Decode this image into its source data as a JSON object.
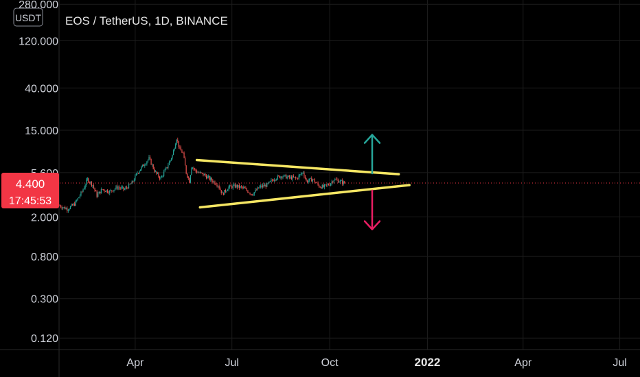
{
  "symbol": {
    "title": "EOS / TetherUS, 1D, BINANCE",
    "currency": "USDT"
  },
  "last_price": {
    "value": "4.400",
    "countdown": "17:45:53"
  },
  "colors": {
    "background": "#000000",
    "grid": "#1c1c1c",
    "up_candle": "#26a69a",
    "down_candle": "#ef5350",
    "trendline": "#f5e663",
    "arrow_up": "#26a69a",
    "arrow_down": "#e91e63",
    "price_badge": "#f23645",
    "axis_text": "#d1d4dc"
  },
  "chart_data": {
    "type": "candlestick",
    "title": "EOS / TetherUS, 1D, BINANCE",
    "y_scale": "log",
    "ylim": [
      0.11,
      290
    ],
    "grid": true,
    "y_ticks": [
      {
        "value": 280,
        "label": "280.000"
      },
      {
        "value": 120,
        "label": "120.000"
      },
      {
        "value": 40,
        "label": "40.000"
      },
      {
        "value": 15,
        "label": "15.000"
      },
      {
        "value": 5.6,
        "label": "5.600"
      },
      {
        "value": 2,
        "label": "2.000"
      },
      {
        "value": 0.8,
        "label": "0.800"
      },
      {
        "value": 0.3,
        "label": "0.300"
      },
      {
        "value": 0.12,
        "label": "0.120"
      }
    ],
    "x_range": [
      "2021-01-20",
      "2022-07-20"
    ],
    "x_ticks": [
      {
        "date": "2021-04-01",
        "label": "Apr",
        "bold": false
      },
      {
        "date": "2021-07-01",
        "label": "Jul",
        "bold": false
      },
      {
        "date": "2021-10-01",
        "label": "Oct",
        "bold": false
      },
      {
        "date": "2022-01-01",
        "label": "2022",
        "bold": true
      },
      {
        "date": "2022-04-01",
        "label": "Apr",
        "bold": false
      },
      {
        "date": "2022-07-01",
        "label": "Jul",
        "bold": false
      }
    ],
    "price_line": 4.4,
    "price_path": [
      [
        "2021-01-20",
        2.6
      ],
      [
        "2021-01-27",
        2.4
      ],
      [
        "2021-02-03",
        2.7
      ],
      [
        "2021-02-10",
        3.6
      ],
      [
        "2021-02-15",
        4.8
      ],
      [
        "2021-02-20",
        4.2
      ],
      [
        "2021-02-24",
        3.3
      ],
      [
        "2021-03-01",
        3.8
      ],
      [
        "2021-03-08",
        3.6
      ],
      [
        "2021-03-15",
        4.0
      ],
      [
        "2021-03-22",
        3.8
      ],
      [
        "2021-03-29",
        4.4
      ],
      [
        "2021-04-03",
        5.6
      ],
      [
        "2021-04-08",
        6.5
      ],
      [
        "2021-04-14",
        7.8
      ],
      [
        "2021-04-20",
        5.6
      ],
      [
        "2021-04-25",
        4.9
      ],
      [
        "2021-05-01",
        6.4
      ],
      [
        "2021-05-06",
        8.4
      ],
      [
        "2021-05-10",
        12.5
      ],
      [
        "2021-05-13",
        9.6
      ],
      [
        "2021-05-16",
        8.8
      ],
      [
        "2021-05-19",
        5.6
      ],
      [
        "2021-05-22",
        4.6
      ],
      [
        "2021-05-24",
        6.5
      ],
      [
        "2021-05-29",
        5.7
      ],
      [
        "2021-06-05",
        5.3
      ],
      [
        "2021-06-12",
        4.7
      ],
      [
        "2021-06-18",
        4.2
      ],
      [
        "2021-06-22",
        3.4
      ],
      [
        "2021-06-28",
        4.0
      ],
      [
        "2021-07-05",
        4.1
      ],
      [
        "2021-07-12",
        3.9
      ],
      [
        "2021-07-20",
        3.4
      ],
      [
        "2021-07-27",
        4.0
      ],
      [
        "2021-08-03",
        4.2
      ],
      [
        "2021-08-10",
        4.9
      ],
      [
        "2021-08-17",
        5.2
      ],
      [
        "2021-08-24",
        5.0
      ],
      [
        "2021-08-31",
        4.9
      ],
      [
        "2021-09-06",
        5.7
      ],
      [
        "2021-09-09",
        4.6
      ],
      [
        "2021-09-15",
        4.8
      ],
      [
        "2021-09-21",
        4.1
      ],
      [
        "2021-09-25",
        4.0
      ],
      [
        "2021-10-01",
        4.3
      ],
      [
        "2021-10-05",
        4.8
      ],
      [
        "2021-10-10",
        4.6
      ],
      [
        "2021-10-15",
        4.4
      ]
    ],
    "trendlines": [
      {
        "points": [
          [
            "2021-05-29",
            7.5
          ],
          [
            "2021-12-05",
            5.4
          ]
        ]
      },
      {
        "points": [
          [
            "2021-06-01",
            2.5
          ],
          [
            "2021-12-15",
            4.2
          ]
        ]
      }
    ],
    "arrows": [
      {
        "direction": "up",
        "date": "2021-11-10",
        "from": 5.5,
        "to": 13.5
      },
      {
        "direction": "down",
        "date": "2021-11-10",
        "from": 3.7,
        "to": 1.5
      }
    ]
  }
}
